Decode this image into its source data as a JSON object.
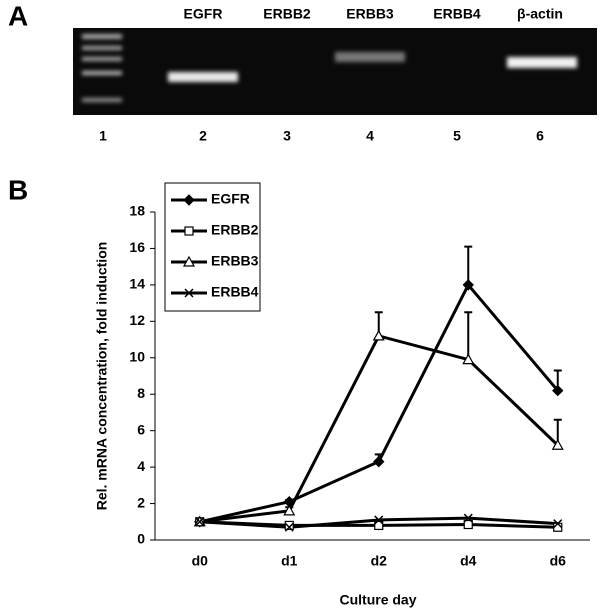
{
  "panels": [
    "A",
    "B"
  ],
  "gel": {
    "labels": [
      "EGFR",
      "ERBB2",
      "ERBB3",
      "ERBB4",
      "β-actin"
    ],
    "lanes": [
      1,
      2,
      3,
      4,
      5,
      6
    ]
  },
  "chart_data": {
    "type": "line",
    "ylabel": "Rel. mRNA concentration, fold induction",
    "xlabel": "Culture day",
    "categories": [
      "d0",
      "d1",
      "d2",
      "d4",
      "d6"
    ],
    "ylim": [
      0,
      18
    ],
    "yticks": [
      0,
      2,
      4,
      6,
      8,
      10,
      12,
      14,
      16,
      18
    ],
    "legend": "upper left",
    "series": [
      {
        "name": "EGFR",
        "color": "#000000",
        "marker": "diamond",
        "values": [
          1,
          2.1,
          4.3,
          14.0,
          8.2
        ],
        "errors": [
          0,
          0.1,
          0.4,
          2.1,
          1.1
        ]
      },
      {
        "name": "ERBB2",
        "color": "#000000",
        "marker": "square",
        "values": [
          1,
          0.8,
          0.8,
          0.85,
          0.7
        ]
      },
      {
        "name": "ERBB3",
        "color": "#000000",
        "marker": "triangle",
        "values": [
          1,
          1.6,
          11.2,
          9.9,
          5.2
        ],
        "errors": [
          0,
          0.2,
          1.3,
          2.6,
          1.4
        ]
      },
      {
        "name": "ERBB4",
        "color": "#000000",
        "marker": "x",
        "values": [
          1,
          0.7,
          1.1,
          1.2,
          0.9
        ]
      }
    ]
  }
}
